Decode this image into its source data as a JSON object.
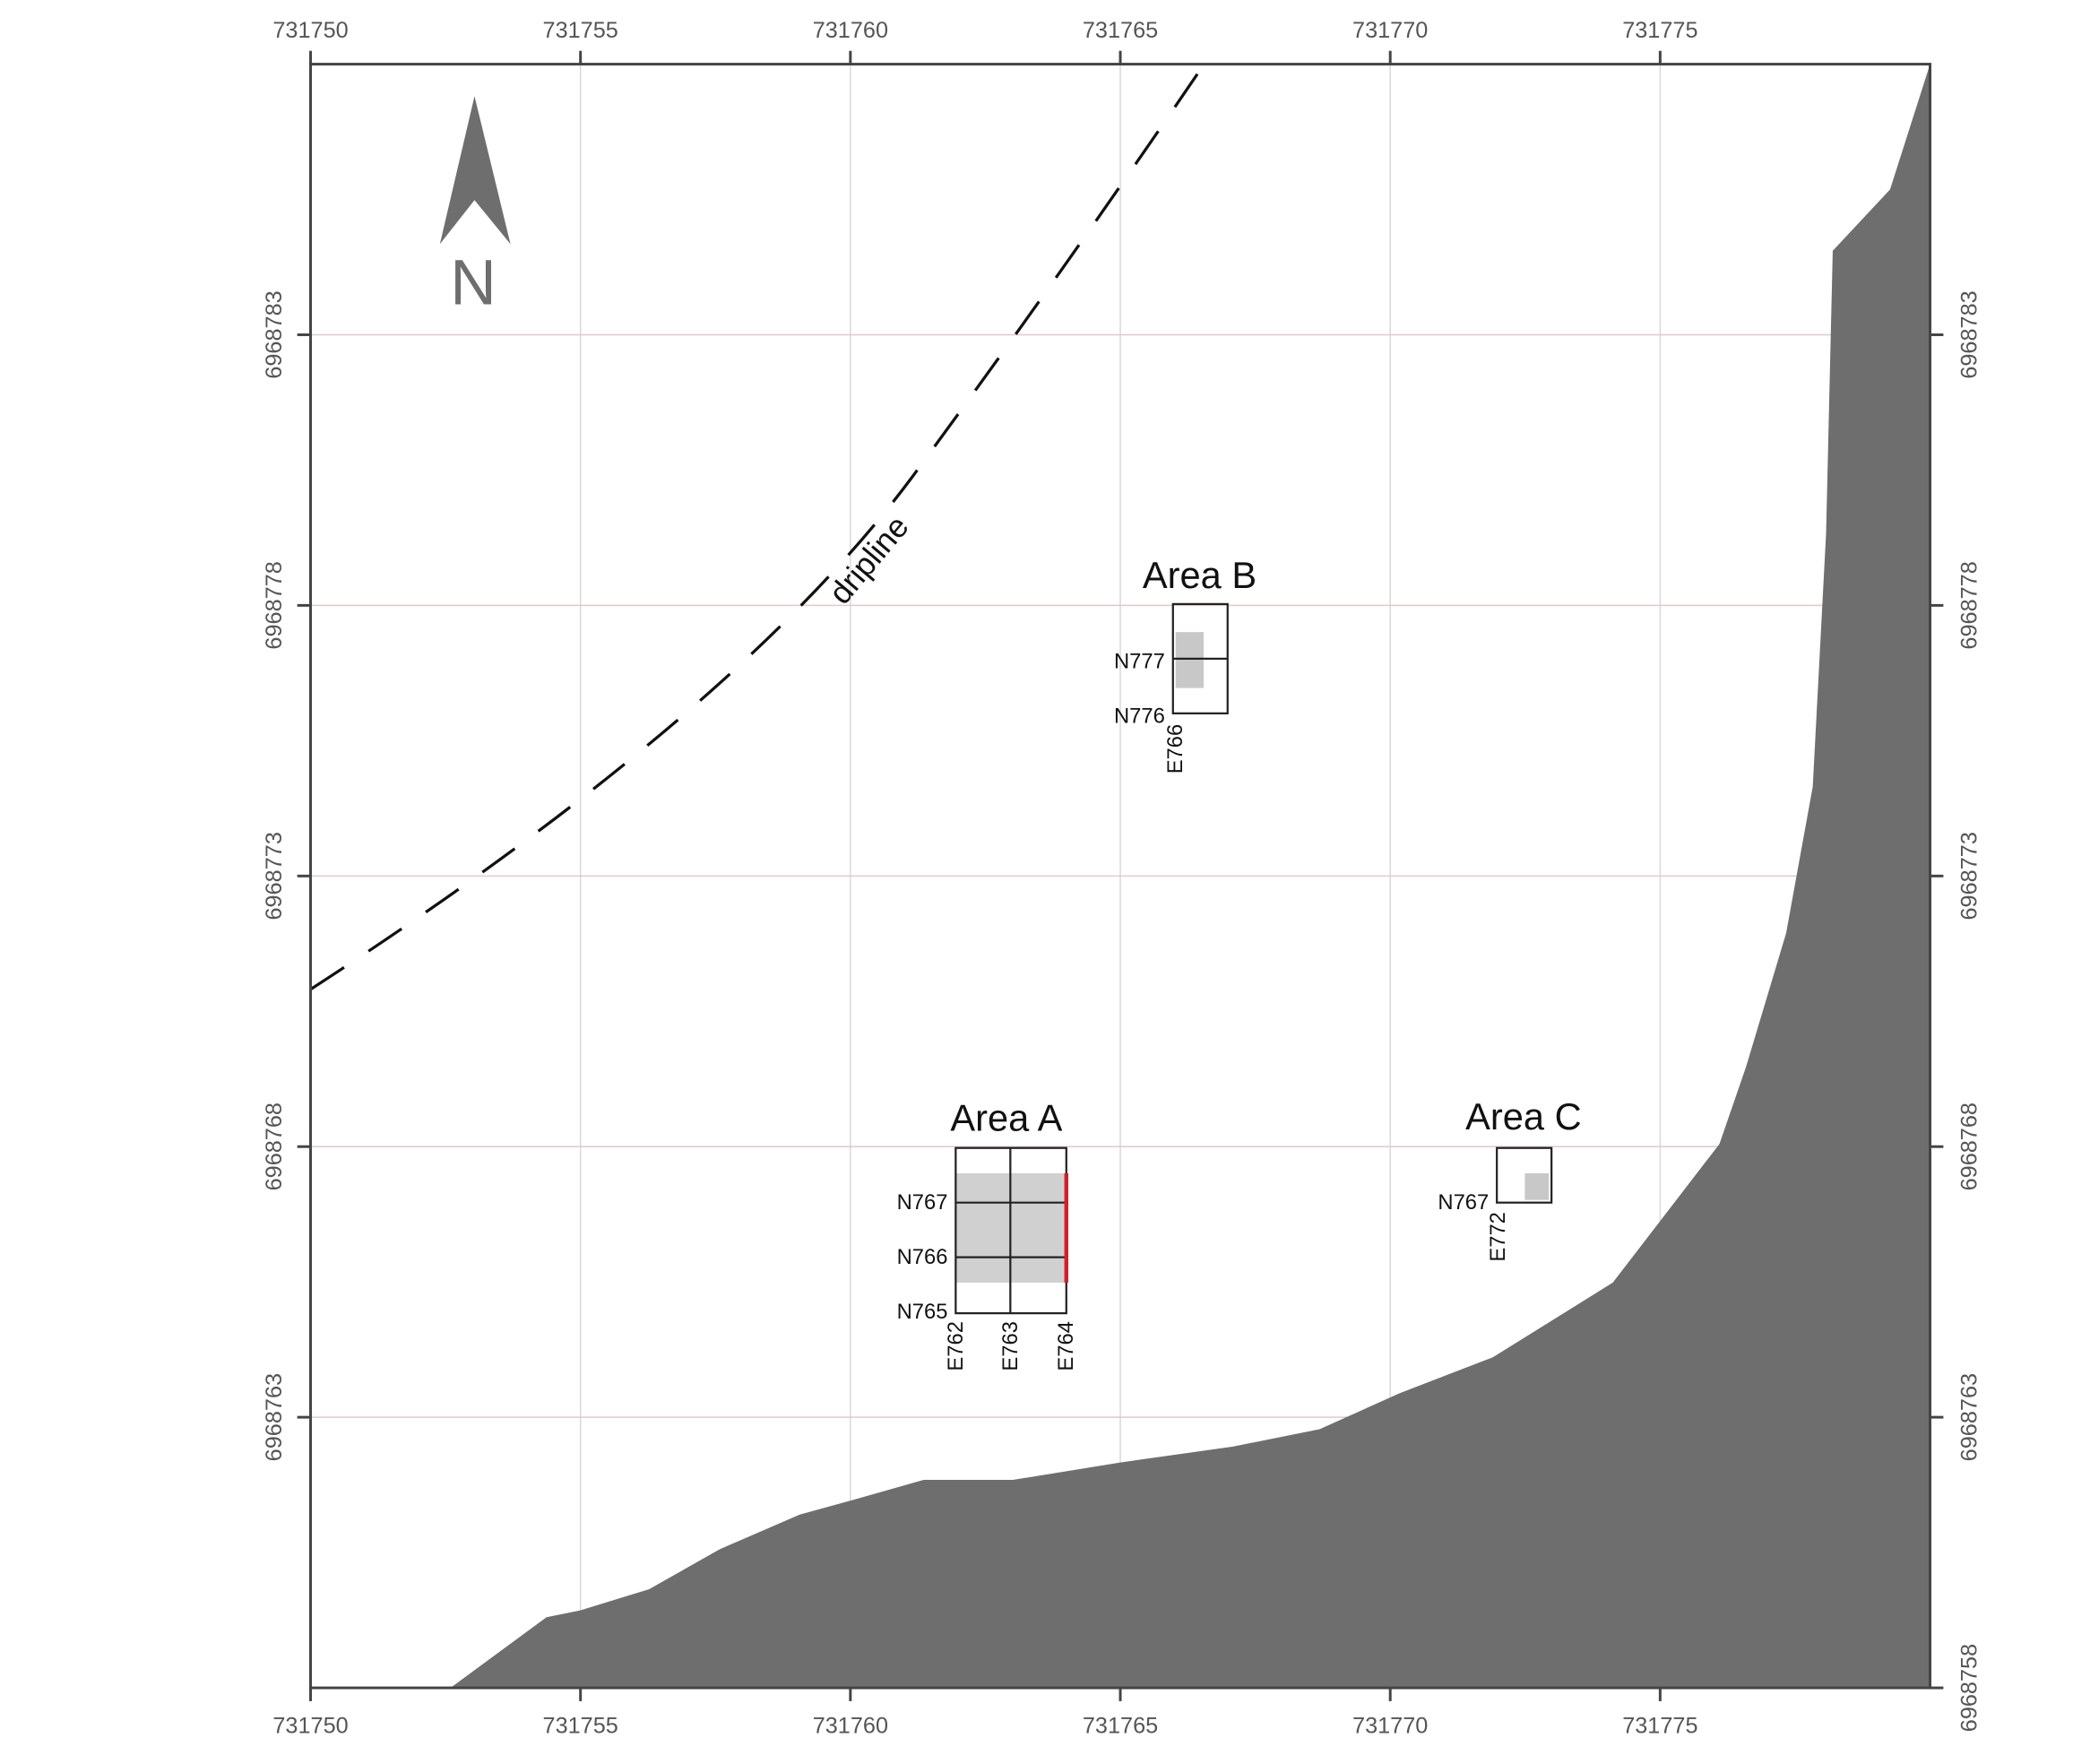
{
  "map": {
    "x_axis": {
      "lim": [
        731750,
        731780
      ],
      "ticks": [
        731750,
        731755,
        731760,
        731765,
        731770,
        731775
      ]
    },
    "y_axis": {
      "lim": [
        6968758,
        6968788
      ],
      "left_ticks": [
        6968783,
        6968778,
        6968773,
        6968768,
        6968763
      ],
      "right_ticks": [
        6968783,
        6968778,
        6968773,
        6968768,
        6968763,
        6968758
      ]
    },
    "north_label": "N",
    "dripline_label": "dripline",
    "areas": [
      {
        "title": "Area A",
        "row_labels": [
          "N767",
          "N766",
          "N765"
        ],
        "col_labels": [
          "E762",
          "E763",
          "E764"
        ]
      },
      {
        "title": "Area B",
        "row_labels": [
          "N777",
          "N776"
        ],
        "col_labels": [
          "E766"
        ]
      },
      {
        "title": "Area C",
        "row_labels": [
          "N767"
        ],
        "col_labels": [
          "E772"
        ]
      }
    ]
  }
}
